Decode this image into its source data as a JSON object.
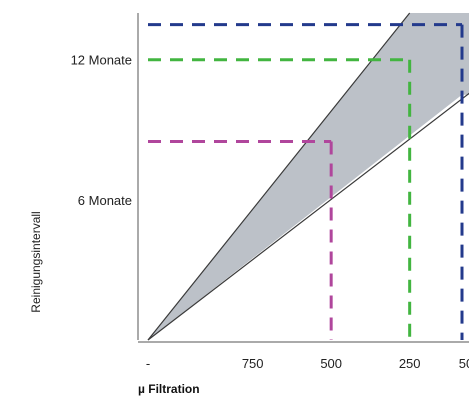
{
  "chart_data": {
    "type": "area",
    "title": "",
    "xlabel": "µ Filtration",
    "ylabel": "Reinigungsintervall",
    "x_tick_labels": [
      "-",
      "750",
      "500",
      "250",
      "50"
    ],
    "y_tick_labels": [
      "6 Monate",
      "12 Monate"
    ],
    "grid": false,
    "legend": "none",
    "band": {
      "color": "#bcc1c8",
      "upper_line": [
        [
          0,
          0
        ],
        [
          2.5,
          14
        ]
      ],
      "lower_line": [
        [
          0,
          0
        ],
        [
          3,
          10.5
        ]
      ]
    },
    "guide_lines": [
      {
        "color": "#b0469c",
        "x": 1.75,
        "y": 8.5
      },
      {
        "color": "#42b540",
        "x": 2.5,
        "y": 12
      },
      {
        "color": "#233a8c",
        "x": 3.0,
        "y": 13.5
      }
    ],
    "x_tick_values": [
      0,
      1,
      1.75,
      2.5,
      3.0
    ],
    "y_tick_values": [
      6,
      12
    ],
    "xlim": [
      0,
      3.0
    ],
    "ylim": [
      0,
      14
    ]
  }
}
